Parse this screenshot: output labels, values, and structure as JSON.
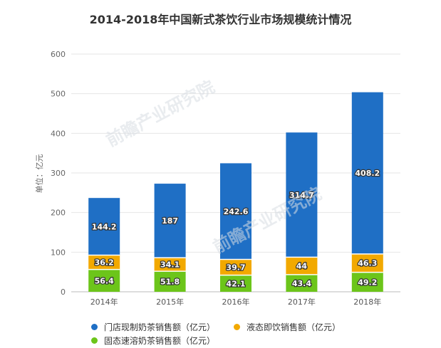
{
  "chart_data": {
    "type": "bar",
    "stacked": true,
    "title": "2014-2018年中国新式茶饮行业市场规模统计情况",
    "ylabel": "单位：亿元",
    "xlabel": "",
    "ylim": [
      0,
      600
    ],
    "yticks": [
      0,
      100,
      200,
      300,
      400,
      500,
      600
    ],
    "grid": true,
    "legend_position": "bottom",
    "categories": [
      "2014年",
      "2015年",
      "2016年",
      "2017年",
      "2018年"
    ],
    "series": [
      {
        "name": "固态速溶奶茶销售额（亿元）",
        "color": "#6cc51a",
        "values": [
          56.4,
          51.8,
          42.1,
          43.4,
          49.2
        ],
        "labels": [
          "56.4",
          "51.8",
          "42.1",
          "43.4",
          "49.2"
        ]
      },
      {
        "name": "液态即饮销售额（亿元）",
        "color": "#f2a900",
        "values": [
          36.2,
          34.1,
          39.7,
          44,
          46.3
        ],
        "labels": [
          "36.2",
          "34.1",
          "39.7",
          "44",
          "46.3"
        ]
      },
      {
        "name": "门店现制奶茶销售额（亿元）",
        "color": "#1f6fc5",
        "values": [
          144.2,
          187,
          242.6,
          314.7,
          408.2
        ],
        "labels": [
          "144.2",
          "187",
          "242.6",
          "314.7",
          "408.2"
        ]
      }
    ],
    "legend_order": [
      2,
      1,
      0
    ],
    "watermark": "前瞻产业研究院"
  }
}
